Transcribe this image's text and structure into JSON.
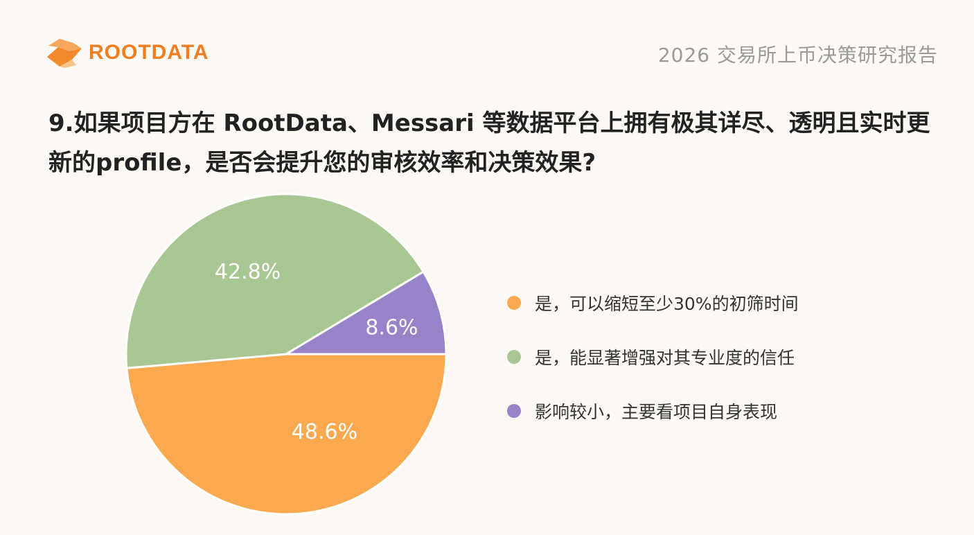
{
  "header": {
    "logo_text": "ROOTDATA",
    "report_title": "2026 交易所上币决策研究报告"
  },
  "question": "9.如果项目方在 RootData、Messari 等数据平台上拥有极其详尽、透明且实时更新的profile，是否会提升您的审核效率和决策效果?",
  "chart_data": {
    "type": "pie",
    "title": "",
    "legend_position": "right",
    "slices": [
      {
        "label": "是，可以缩短至少30%的初筛时间",
        "value": 48.6,
        "value_label": "48.6%",
        "color": "#fba94f"
      },
      {
        "label": "是，能显著增强对其专业度的信任",
        "value": 42.8,
        "value_label": "42.8%",
        "color": "#a9c792"
      },
      {
        "label": "影响较小，主要看项目自身表现",
        "value": 8.6,
        "value_label": "8.6%",
        "color": "#9883c8"
      }
    ]
  }
}
